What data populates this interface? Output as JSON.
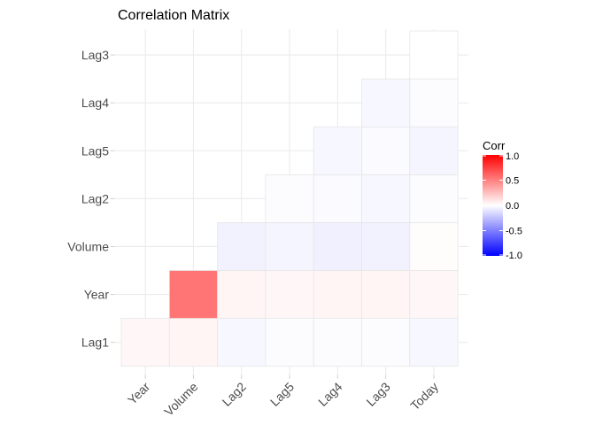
{
  "chart_data": {
    "type": "heatmap",
    "title": "Correlation Matrix",
    "xlabel": "",
    "ylabel": "",
    "x_categories": [
      "Year",
      "Volume",
      "Lag2",
      "Lag5",
      "Lag4",
      "Lag3",
      "Today"
    ],
    "y_categories": [
      "Lag1",
      "Year",
      "Volume",
      "Lag2",
      "Lag5",
      "Lag4",
      "Lag3"
    ],
    "cells": [
      {
        "x": "Year",
        "y": "Lag1",
        "value": 0.03
      },
      {
        "x": "Volume",
        "y": "Lag1",
        "value": 0.04
      },
      {
        "x": "Lag2",
        "y": "Lag1",
        "value": -0.03
      },
      {
        "x": "Lag5",
        "y": "Lag1",
        "value": -0.01
      },
      {
        "x": "Lag4",
        "y": "Lag1",
        "value": -0.01
      },
      {
        "x": "Lag3",
        "y": "Lag1",
        "value": -0.01
      },
      {
        "x": "Today",
        "y": "Lag1",
        "value": -0.03
      },
      {
        "x": "Volume",
        "y": "Year",
        "value": 0.54
      },
      {
        "x": "Lag2",
        "y": "Year",
        "value": 0.04
      },
      {
        "x": "Lag5",
        "y": "Year",
        "value": 0.03
      },
      {
        "x": "Lag4",
        "y": "Year",
        "value": 0.04
      },
      {
        "x": "Lag3",
        "y": "Year",
        "value": 0.04
      },
      {
        "x": "Today",
        "y": "Year",
        "value": 0.03
      },
      {
        "x": "Lag2",
        "y": "Volume",
        "value": -0.05
      },
      {
        "x": "Lag5",
        "y": "Volume",
        "value": -0.04
      },
      {
        "x": "Lag4",
        "y": "Volume",
        "value": -0.06
      },
      {
        "x": "Lag3",
        "y": "Volume",
        "value": -0.05
      },
      {
        "x": "Today",
        "y": "Volume",
        "value": 0.01
      },
      {
        "x": "Lag5",
        "y": "Lag2",
        "value": -0.01
      },
      {
        "x": "Lag4",
        "y": "Lag2",
        "value": -0.02
      },
      {
        "x": "Lag3",
        "y": "Lag2",
        "value": -0.03
      },
      {
        "x": "Today",
        "y": "Lag2",
        "value": -0.01
      },
      {
        "x": "Lag4",
        "y": "Lag5",
        "value": -0.03
      },
      {
        "x": "Lag3",
        "y": "Lag5",
        "value": -0.02
      },
      {
        "x": "Today",
        "y": "Lag5",
        "value": -0.04
      },
      {
        "x": "Lag3",
        "y": "Lag4",
        "value": -0.03
      },
      {
        "x": "Today",
        "y": "Lag4",
        "value": -0.01
      },
      {
        "x": "Today",
        "y": "Lag3",
        "value": -0.0
      }
    ],
    "color_scale": {
      "low": "#0000ff",
      "mid": "#ffffff",
      "high": "#ff0000",
      "limits": [
        -1,
        1
      ]
    },
    "legend": {
      "title": "Corr",
      "ticks": [
        1.0,
        0.5,
        0.0,
        -0.5,
        -1.0
      ],
      "tick_labels": [
        "1.0",
        "0.5",
        "0.0",
        "-0.5",
        "-1.0"
      ],
      "placement": "right"
    },
    "grid": true
  }
}
